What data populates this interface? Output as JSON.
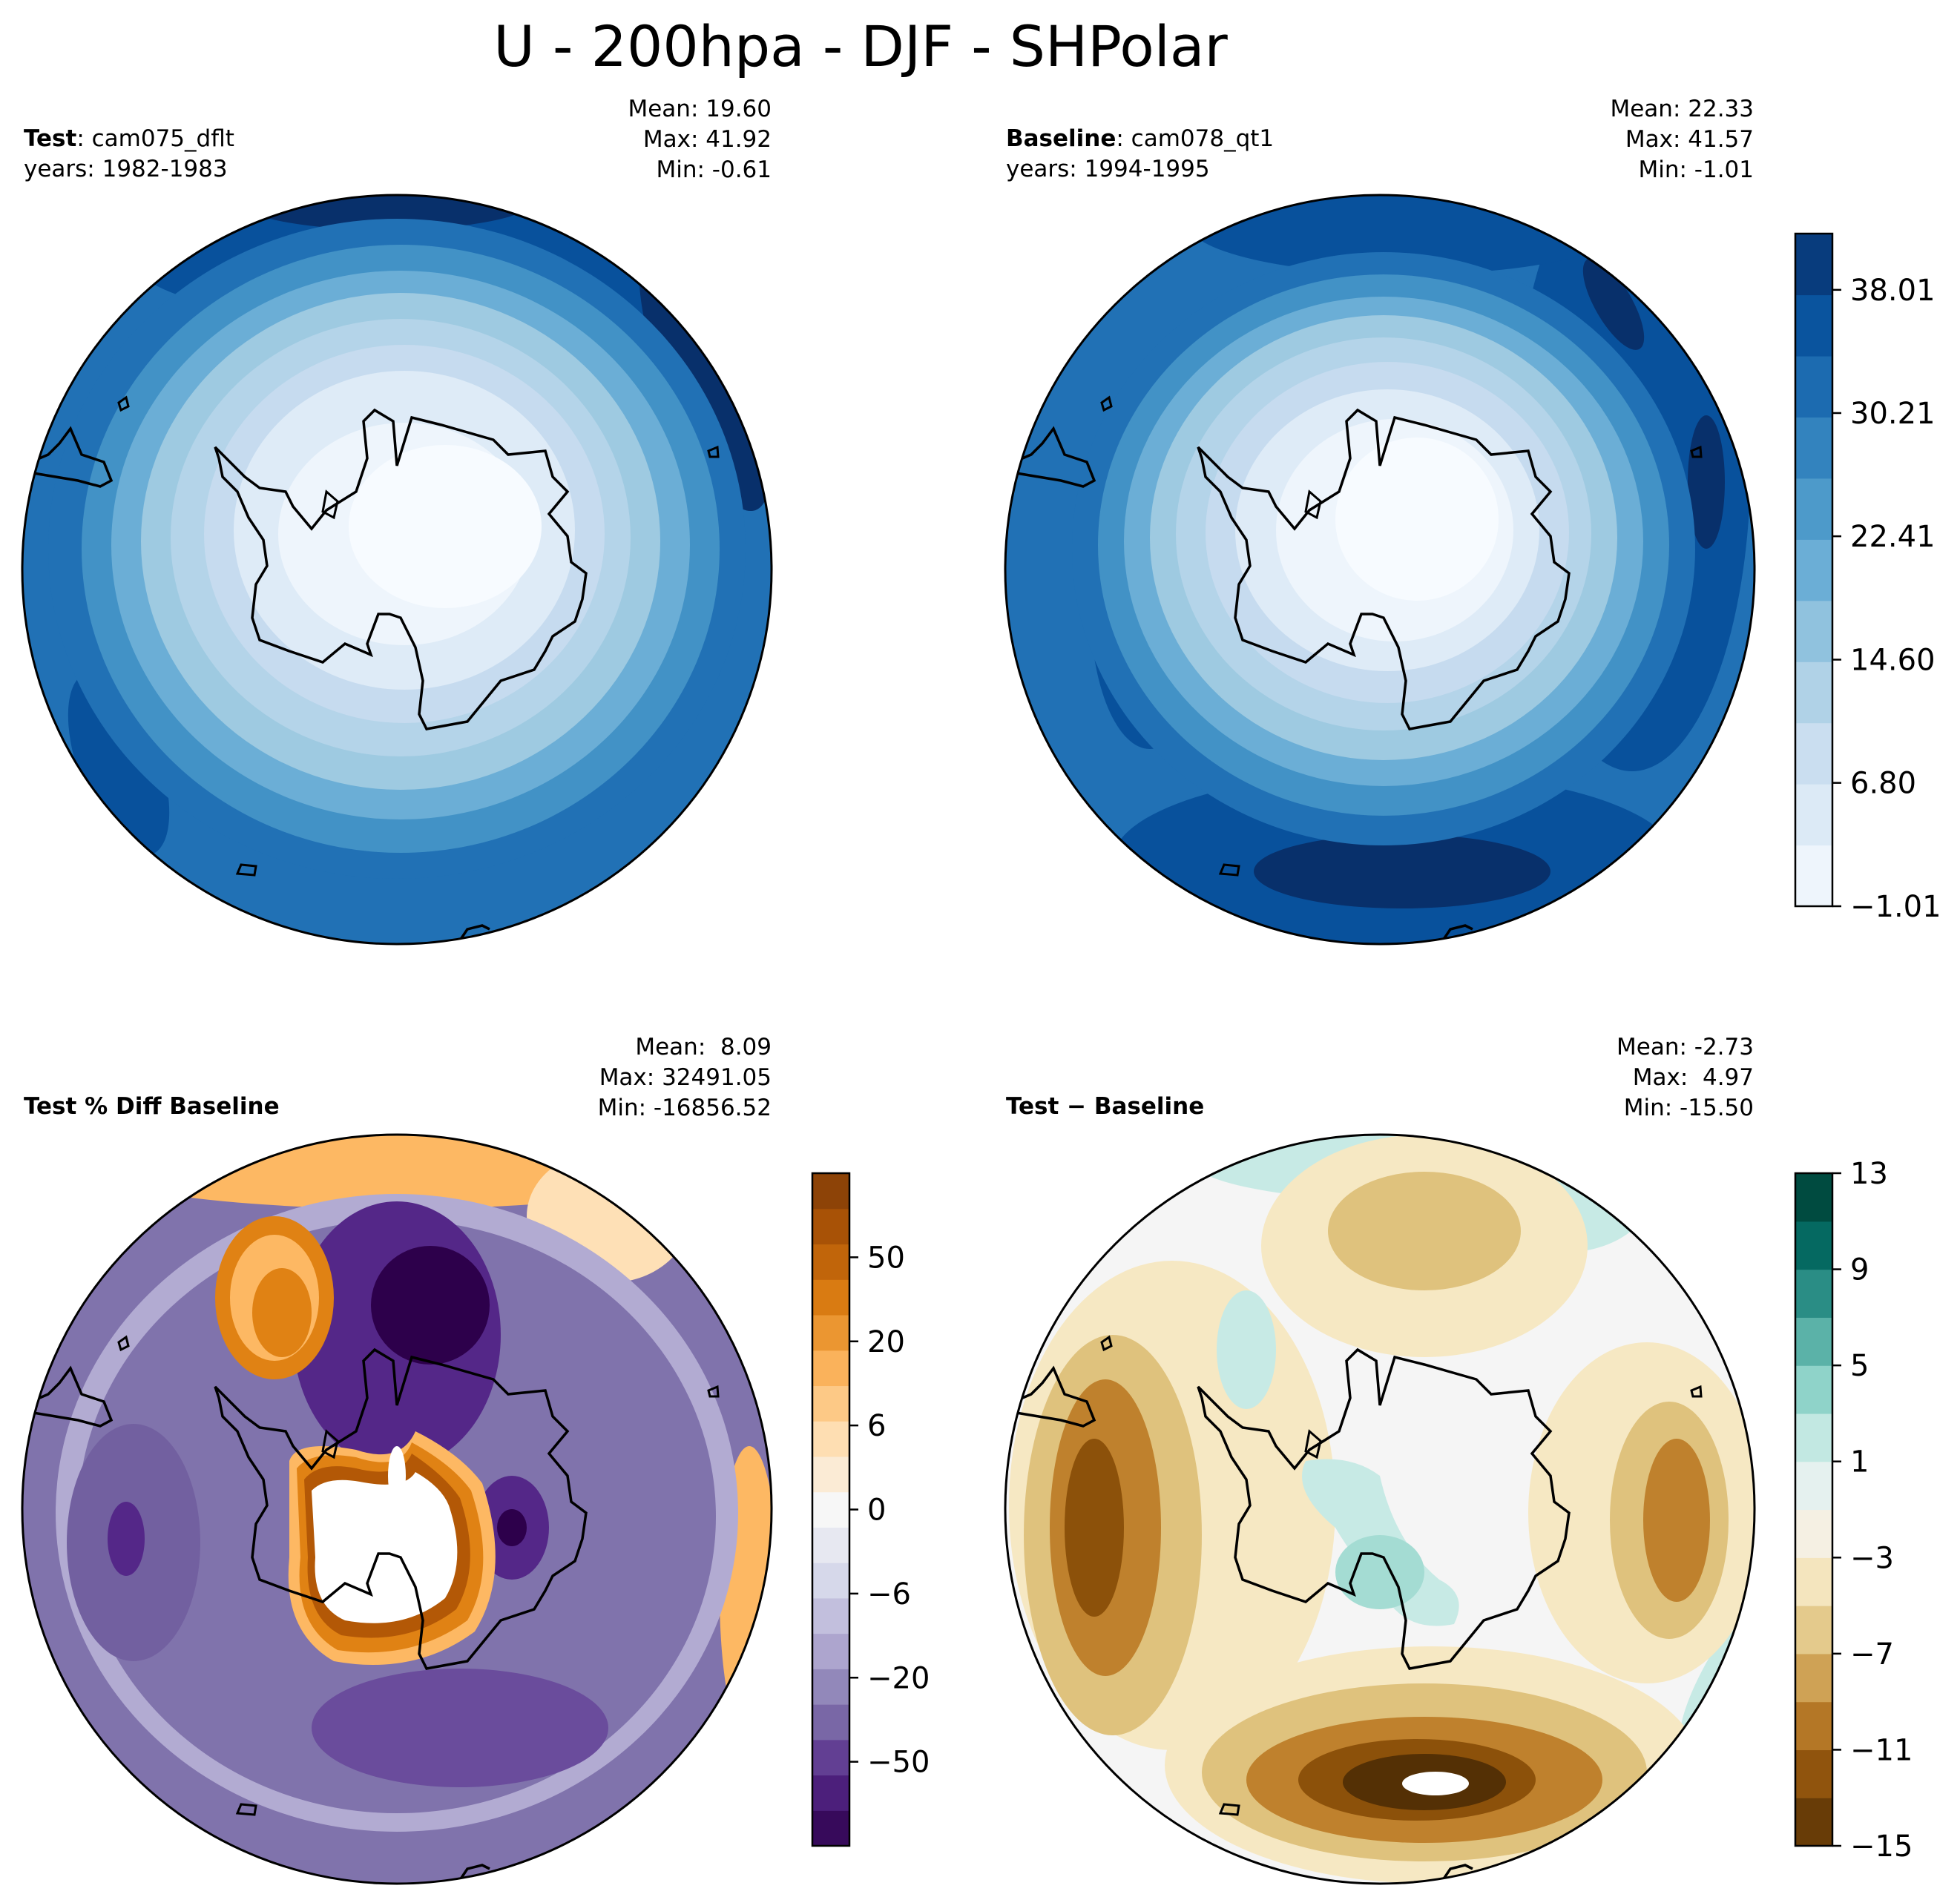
{
  "figure_title": "U - 200hpa - DJF - SHPolar",
  "colors": {
    "blues": [
      "#f7fbff",
      "#deebf7",
      "#c6dbef",
      "#9ecae1",
      "#6baed6",
      "#4292c6",
      "#2171b5",
      "#08519c",
      "#08306b"
    ],
    "puor": [
      "#2d004b",
      "#542788",
      "#8073ac",
      "#b2abd2",
      "#d8daeb",
      "#f7f7f7",
      "#fee0b6",
      "#fdb863",
      "#e08214",
      "#b35806",
      "#7f3b08"
    ],
    "brbg": [
      "#543005",
      "#8c510a",
      "#bf812d",
      "#dfc27d",
      "#f6e8c3",
      "#f5f5f5",
      "#c7eae5",
      "#80cdc1",
      "#35978f",
      "#01665e",
      "#003c30"
    ]
  },
  "panels": {
    "test": {
      "label_bold": "Test",
      "label_rest": ": cam075_dflt",
      "years": "years: 1982-1983",
      "mean": "Mean: 19.60",
      "max": "Max: 41.92",
      "min": "Min: -0.61"
    },
    "baseline": {
      "label_bold": "Baseline",
      "label_rest": ": cam078_qt1",
      "years": "years: 1994-1995",
      "mean": "Mean: 22.33",
      "max": "Max: 41.57",
      "min": "Min: -1.01"
    },
    "pct_diff": {
      "label_bold": "Test % Diff Baseline",
      "mean": "Mean:  8.09",
      "max": "Max: 32491.05",
      "min": "Min: -16856.52"
    },
    "diff": {
      "label_bold": "Test − Baseline",
      "mean": "Mean: -2.73",
      "max": "Max:  4.97",
      "min": "Min: -15.50"
    }
  },
  "chart_data": [
    {
      "type": "contour-map",
      "projection": "south-polar-stereographic",
      "panel": "Test: cam075_dflt",
      "colormap": "Blues",
      "stats": {
        "mean": 19.6,
        "max": 41.92,
        "min": -0.61
      }
    },
    {
      "type": "contour-map",
      "projection": "south-polar-stereographic",
      "panel": "Baseline: cam078_qt1",
      "colormap": "Blues",
      "stats": {
        "mean": 22.33,
        "max": 41.57,
        "min": -1.01
      },
      "colorbar": {
        "ticks": [
          "38.01",
          "30.21",
          "22.41",
          "14.60",
          "6.80",
          "−1.01"
        ],
        "tick_values": [
          38.01,
          30.21,
          22.41,
          14.6,
          6.8,
          -1.01
        ],
        "range": [
          -1.01,
          41.57
        ],
        "levels": 11
      }
    },
    {
      "type": "contour-map",
      "projection": "south-polar-stereographic",
      "panel": "Test % Diff Baseline",
      "colormap": "PuOr_r",
      "stats": {
        "mean": 8.09,
        "max": 32491.05,
        "min": -16856.52
      },
      "colorbar": {
        "ticks": [
          "50",
          "20",
          "6",
          "0",
          "−6",
          "−20",
          "−50"
        ],
        "tick_values": [
          50,
          20,
          6,
          0,
          -6,
          -20,
          -50
        ],
        "levels": 19
      }
    },
    {
      "type": "contour-map",
      "projection": "south-polar-stereographic",
      "panel": "Test − Baseline",
      "colormap": "BrBG",
      "stats": {
        "mean": -2.73,
        "max": 4.97,
        "min": -15.5
      },
      "colorbar": {
        "ticks": [
          "13",
          "9",
          "5",
          "1",
          "−3",
          "−7",
          "−11",
          "−15"
        ],
        "tick_values": [
          13,
          9,
          5,
          1,
          -3,
          -7,
          -11,
          -15
        ],
        "range": [
          -15,
          13
        ],
        "levels": 14
      }
    }
  ]
}
